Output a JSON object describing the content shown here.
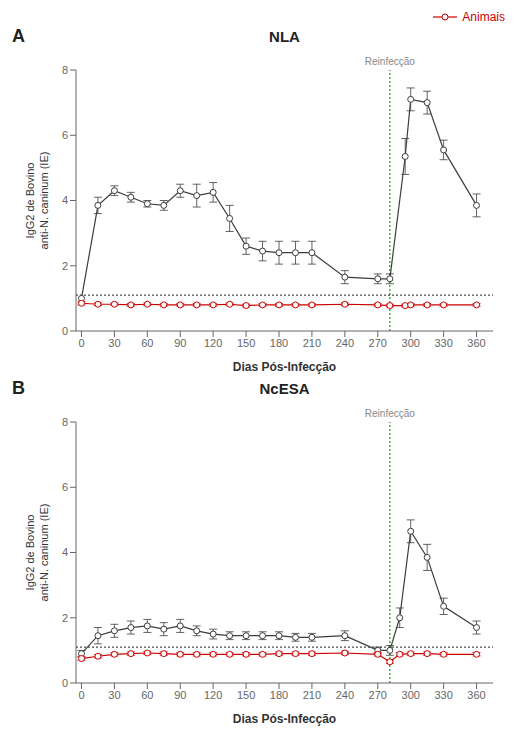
{
  "chart_data": [
    {
      "type": "line",
      "panel_label": "A",
      "title": "NLA",
      "x_label": "Dias Pós-Infecção",
      "y_label": "IgG2 de Bovino\nanti-N. caninum (IE)",
      "xlim": [
        -5,
        375
      ],
      "xticks": [
        0,
        30,
        60,
        90,
        120,
        150,
        180,
        210,
        240,
        270,
        300,
        330,
        360
      ],
      "ylim": [
        0,
        8
      ],
      "yticks": [
        0,
        2,
        4,
        6,
        8
      ],
      "grid": false,
      "legend": "upper right",
      "series": [
        {
          "color": "#3c3c3c",
          "marker": "circle",
          "line_style": "solid",
          "x": [
            0,
            15,
            30,
            45,
            60,
            75,
            90,
            105,
            120,
            135,
            150,
            165,
            180,
            195,
            210,
            240,
            270,
            281,
            295,
            300,
            315,
            330,
            360
          ],
          "values": [
            1.0,
            3.85,
            4.3,
            4.1,
            3.9,
            3.85,
            4.3,
            4.15,
            4.25,
            3.45,
            2.6,
            2.45,
            2.4,
            2.4,
            2.4,
            1.65,
            1.6,
            1.6,
            5.35,
            7.1,
            7.0,
            5.55,
            3.85
          ],
          "error": [
            0.0,
            0.25,
            0.15,
            0.15,
            0.1,
            0.15,
            0.2,
            0.35,
            0.3,
            0.4,
            0.25,
            0.3,
            0.35,
            0.35,
            0.35,
            0.2,
            0.15,
            0.15,
            0.55,
            0.35,
            0.35,
            0.3,
            0.35
          ]
        },
        {
          "name": "Animais",
          "color": "#cc0000",
          "marker": "circle",
          "line_style": "solid",
          "x": [
            0,
            15,
            30,
            45,
            60,
            75,
            90,
            105,
            120,
            135,
            150,
            165,
            180,
            195,
            210,
            240,
            270,
            281,
            295,
            300,
            315,
            330,
            360
          ],
          "values": [
            0.85,
            0.82,
            0.82,
            0.8,
            0.82,
            0.8,
            0.8,
            0.8,
            0.8,
            0.82,
            0.78,
            0.8,
            0.8,
            0.8,
            0.8,
            0.82,
            0.8,
            0.78,
            0.78,
            0.8,
            0.8,
            0.8,
            0.8
          ],
          "error": [
            0.05,
            0.04,
            0.04,
            0.04,
            0.04,
            0.04,
            0.04,
            0.04,
            0.04,
            0.04,
            0.04,
            0.04,
            0.04,
            0.04,
            0.04,
            0.04,
            0.04,
            0.04,
            0.04,
            0.04,
            0.04,
            0.04,
            0.04
          ]
        }
      ],
      "hlines": [
        {
          "y": 1.1,
          "color": "#222222",
          "line_style": "dotted"
        }
      ],
      "vlines": [
        {
          "x": 281,
          "color": "#00aa00",
          "line_style": "dotted",
          "label": "Reinfecção",
          "label_color": "#888888"
        }
      ]
    },
    {
      "type": "line",
      "panel_label": "B",
      "title": "NcESA",
      "x_label": "Dias Pós-Infecção",
      "y_label": "IgG2 de Bovino\nanti-N. caninum (IE)",
      "xlim": [
        -5,
        375
      ],
      "xticks": [
        0,
        30,
        60,
        90,
        120,
        150,
        180,
        210,
        240,
        270,
        300,
        330,
        360
      ],
      "ylim": [
        0,
        8
      ],
      "yticks": [
        0,
        2,
        4,
        6,
        8
      ],
      "grid": false,
      "series": [
        {
          "color": "#3c3c3c",
          "marker": "circle",
          "line_style": "solid",
          "x": [
            0,
            15,
            30,
            45,
            60,
            75,
            90,
            105,
            120,
            135,
            150,
            165,
            180,
            195,
            210,
            240,
            270,
            281,
            290,
            300,
            315,
            330,
            360
          ],
          "values": [
            0.9,
            1.45,
            1.6,
            1.7,
            1.75,
            1.65,
            1.75,
            1.6,
            1.5,
            1.45,
            1.45,
            1.45,
            1.45,
            1.4,
            1.4,
            1.45,
            1.0,
            1.0,
            2.0,
            4.65,
            3.85,
            2.35,
            1.7
          ],
          "error": [
            0.1,
            0.25,
            0.2,
            0.2,
            0.2,
            0.2,
            0.2,
            0.15,
            0.15,
            0.12,
            0.12,
            0.12,
            0.12,
            0.12,
            0.12,
            0.15,
            0.1,
            0.15,
            0.3,
            0.35,
            0.4,
            0.25,
            0.2
          ]
        },
        {
          "name": "Animais",
          "color": "#cc0000",
          "marker": "circle",
          "line_style": "solid",
          "x": [
            0,
            15,
            30,
            45,
            60,
            75,
            90,
            105,
            120,
            135,
            150,
            165,
            180,
            195,
            210,
            240,
            270,
            281,
            290,
            300,
            315,
            330,
            360
          ],
          "values": [
            0.75,
            0.82,
            0.88,
            0.9,
            0.92,
            0.9,
            0.88,
            0.88,
            0.88,
            0.88,
            0.88,
            0.88,
            0.9,
            0.9,
            0.9,
            0.92,
            0.88,
            0.65,
            0.88,
            0.9,
            0.9,
            0.88,
            0.88
          ],
          "error": [
            0.05,
            0.05,
            0.05,
            0.05,
            0.05,
            0.05,
            0.05,
            0.05,
            0.05,
            0.05,
            0.05,
            0.05,
            0.05,
            0.05,
            0.05,
            0.05,
            0.05,
            0.05,
            0.05,
            0.05,
            0.05,
            0.05,
            0.05
          ]
        }
      ],
      "hlines": [
        {
          "y": 1.1,
          "color": "#222222",
          "line_style": "dotted"
        }
      ],
      "vlines": [
        {
          "x": 281,
          "color": "#00aa00",
          "line_style": "dotted",
          "label": "Reinfecção",
          "label_color": "#888888"
        }
      ]
    }
  ]
}
